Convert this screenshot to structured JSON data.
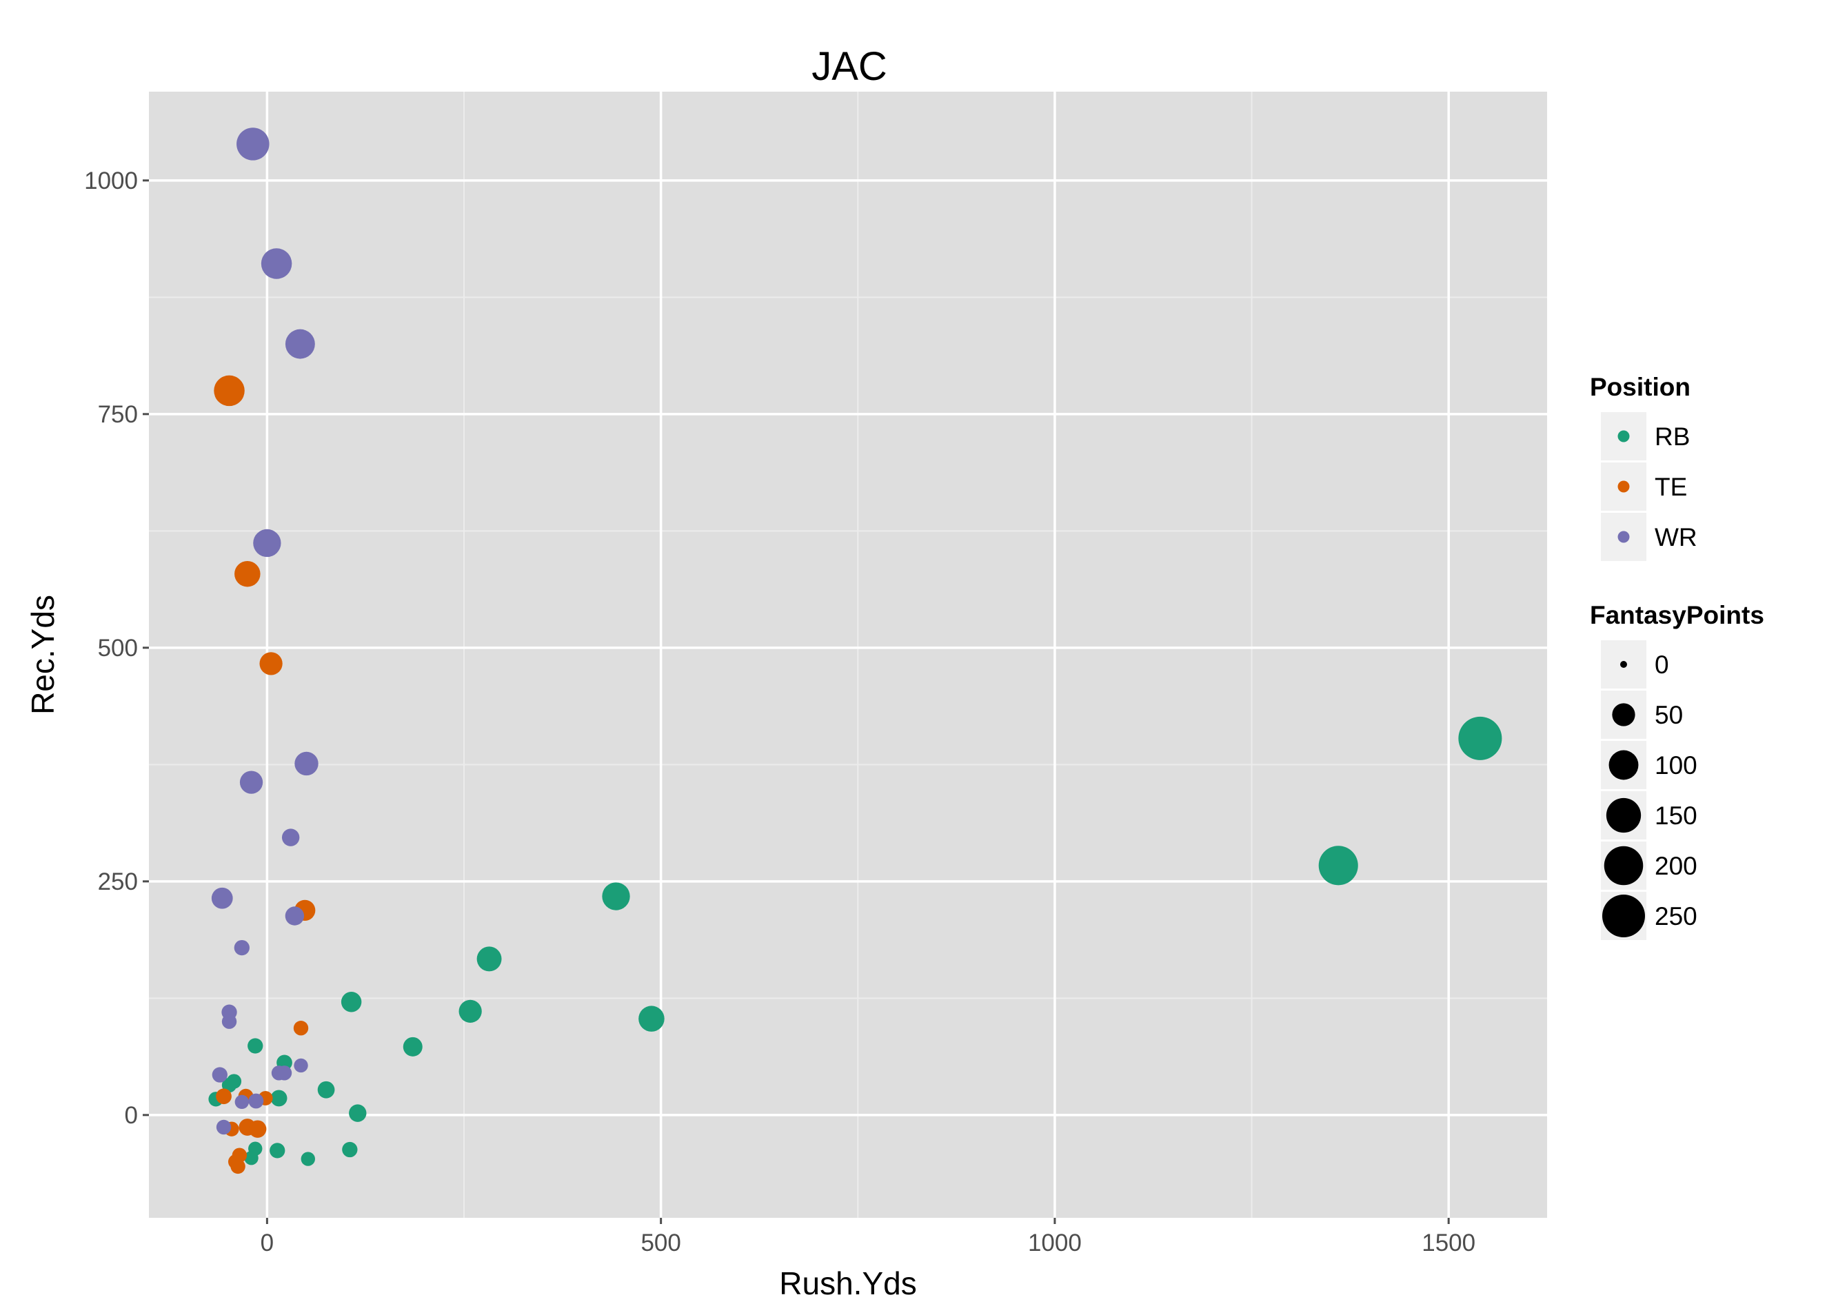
{
  "chart_data": {
    "type": "scatter",
    "title": "JAC",
    "xlabel": "Rush.Yds",
    "ylabel": "Rec.Yds",
    "xlim": [
      -150,
      1625
    ],
    "ylim": [
      -110,
      1095
    ],
    "x_ticks": [
      0,
      500,
      1000,
      1500
    ],
    "y_ticks": [
      0,
      250,
      500,
      750,
      1000
    ],
    "x_tick_labels": [
      "0",
      "500",
      "1000",
      "1500"
    ],
    "y_tick_labels": [
      "0",
      "250",
      "500",
      "750",
      "1000"
    ],
    "grid": true,
    "legend_position": "right",
    "colors": {
      "panel_bg": "#dedede",
      "grid_major": "#ffffff",
      "grid_minor": "#ececec",
      "legend_key_bg": "#f0f0f0",
      "RB": "#1b9e77",
      "TE": "#d95f02",
      "WR": "#7570b3",
      "size_key": "#000000"
    },
    "color_legend": {
      "title": "Position",
      "entries": [
        "RB",
        "TE",
        "WR"
      ]
    },
    "size_legend": {
      "title": "FantasyPoints",
      "values": [
        0,
        50,
        100,
        150,
        200,
        250
      ],
      "labels": [
        "0",
        "50",
        "100",
        "150",
        "200",
        "250"
      ]
    },
    "series": [
      {
        "name": "RB",
        "points": [
          {
            "x": 1540,
            "y": 403,
            "size": 260
          },
          {
            "x": 1360,
            "y": 267,
            "size": 205
          },
          {
            "x": 443,
            "y": 234,
            "size": 85
          },
          {
            "x": 488,
            "y": 103,
            "size": 70
          },
          {
            "x": 282,
            "y": 167,
            "size": 62
          },
          {
            "x": 258,
            "y": 111,
            "size": 50
          },
          {
            "x": 107,
            "y": 121,
            "size": 35
          },
          {
            "x": 185,
            "y": 73,
            "size": 30
          },
          {
            "x": 75,
            "y": 27,
            "size": 20
          },
          {
            "x": 115,
            "y": 2,
            "size": 22
          },
          {
            "x": 22,
            "y": 56,
            "size": 15
          },
          {
            "x": 15,
            "y": 18,
            "size": 18
          },
          {
            "x": -15,
            "y": 74,
            "size": 14
          },
          {
            "x": -42,
            "y": 36,
            "size": 12
          },
          {
            "x": -48,
            "y": 32,
            "size": 12
          },
          {
            "x": -65,
            "y": 17,
            "size": 12
          },
          {
            "x": 13,
            "y": -38,
            "size": 14
          },
          {
            "x": 105,
            "y": -37,
            "size": 14
          },
          {
            "x": 52,
            "y": -47,
            "size": 10
          },
          {
            "x": -15,
            "y": -36,
            "size": 10
          },
          {
            "x": -20,
            "y": -46,
            "size": 10
          }
        ]
      },
      {
        "name": "TE",
        "points": [
          {
            "x": -48,
            "y": 775,
            "size": 110
          },
          {
            "x": -25,
            "y": 579,
            "size": 70
          },
          {
            "x": 5,
            "y": 483,
            "size": 50
          },
          {
            "x": 48,
            "y": 219,
            "size": 38
          },
          {
            "x": 43,
            "y": 93,
            "size": 12
          },
          {
            "x": -55,
            "y": 20,
            "size": 15
          },
          {
            "x": -27,
            "y": 20,
            "size": 13
          },
          {
            "x": -2,
            "y": 18,
            "size": 11
          },
          {
            "x": -25,
            "y": -13,
            "size": 20
          },
          {
            "x": -12,
            "y": -15,
            "size": 22
          },
          {
            "x": -45,
            "y": -15,
            "size": 12
          },
          {
            "x": -35,
            "y": -43,
            "size": 12
          },
          {
            "x": -40,
            "y": -50,
            "size": 12
          },
          {
            "x": -37,
            "y": -55,
            "size": 12
          }
        ]
      },
      {
        "name": "WR",
        "points": [
          {
            "x": -18,
            "y": 1039,
            "size": 130
          },
          {
            "x": 12,
            "y": 911,
            "size": 110
          },
          {
            "x": 42,
            "y": 825,
            "size": 100
          },
          {
            "x": 0,
            "y": 612,
            "size": 85
          },
          {
            "x": 50,
            "y": 376,
            "size": 55
          },
          {
            "x": -20,
            "y": 356,
            "size": 50
          },
          {
            "x": 30,
            "y": 297,
            "size": 22
          },
          {
            "x": -57,
            "y": 232,
            "size": 40
          },
          {
            "x": 35,
            "y": 213,
            "size": 28
          },
          {
            "x": -32,
            "y": 179,
            "size": 14
          },
          {
            "x": -48,
            "y": 110,
            "size": 14
          },
          {
            "x": -48,
            "y": 100,
            "size": 12
          },
          {
            "x": -60,
            "y": 43,
            "size": 14
          },
          {
            "x": 43,
            "y": 53,
            "size": 10
          },
          {
            "x": 15,
            "y": 45,
            "size": 12
          },
          {
            "x": 22,
            "y": 45,
            "size": 12
          },
          {
            "x": -32,
            "y": 14,
            "size": 10
          },
          {
            "x": -14,
            "y": 15,
            "size": 13
          },
          {
            "x": -55,
            "y": -13,
            "size": 12
          }
        ]
      }
    ]
  }
}
